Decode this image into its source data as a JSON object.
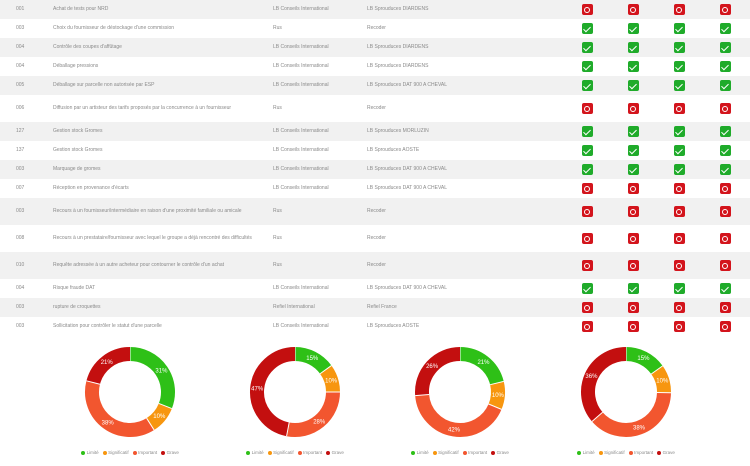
{
  "table": {
    "rows": [
      {
        "id": "001",
        "description": "Achat de tests pour NRD",
        "organization": "LB Conseils International",
        "site": "LB Sprouduces DIARDENS",
        "statuses": [
          "ko",
          "ko",
          "ko",
          "ko"
        ]
      },
      {
        "id": "003",
        "description": "Choix du fournisseur de déstockage d'une commission",
        "organization": "Rus",
        "site": "Recoder",
        "statuses": [
          "ok",
          "ok",
          "ok",
          "ok"
        ]
      },
      {
        "id": "004",
        "description": "Contrôle des coupes d'affûtage",
        "organization": "LB Conseils International",
        "site": "LB Sprouduces DIARDENS",
        "statuses": [
          "ok",
          "ok",
          "ok",
          "ok"
        ]
      },
      {
        "id": "004",
        "description": "Déballage pressions",
        "organization": "LB Conseils International",
        "site": "LB Sprouduces DIARDENS",
        "statuses": [
          "ok",
          "ok",
          "ok",
          "ok"
        ]
      },
      {
        "id": "005",
        "description": "Déballage sur parcelle non autorisée par ESP",
        "organization": "LB Conseils International",
        "site": "LB Sprouduces DAT 900 A CHEVAL",
        "statuses": [
          "ok",
          "ok",
          "ok",
          "ok"
        ]
      },
      {
        "id": "006",
        "description": "Diffusion par un artisteur des tarifs proposés par la concurrence à un fournisseur",
        "organization": "Rus",
        "site": "Recoder",
        "statuses": [
          "ko",
          "ko",
          "ko",
          "ko"
        ],
        "tall": true
      },
      {
        "id": "127",
        "description": "Gestion stock Gromes",
        "organization": "LB Conseils International",
        "site": "LB Sprouduces MORLUZIN",
        "statuses": [
          "ok",
          "ok",
          "ok",
          "ok"
        ]
      },
      {
        "id": "137",
        "description": "Gestion stock Gromes",
        "organization": "LB Conseils International",
        "site": "LB Sprouduces AOSTE",
        "statuses": [
          "ok",
          "ok",
          "ok",
          "ok"
        ]
      },
      {
        "id": "003",
        "description": "Marquage de gromes",
        "organization": "LB Conseils International",
        "site": "LB Sprouduces DAT 900 A CHEVAL",
        "statuses": [
          "ok",
          "ok",
          "ok",
          "ok"
        ]
      },
      {
        "id": "007",
        "description": "Réception en provenance d'écarts",
        "organization": "LB Conseils International",
        "site": "LB Sprouduces DAT 900 A CHEVAL",
        "statuses": [
          "ko",
          "ko",
          "ko",
          "ko"
        ]
      },
      {
        "id": "003",
        "description": "Recours à un fournisseur/intermédiaire en raison d'une proximité familiale ou amicale",
        "organization": "Rus",
        "site": "Recoder",
        "statuses": [
          "ko",
          "ko",
          "ko",
          "ko"
        ],
        "tall": true
      },
      {
        "id": "008",
        "description": "Recours à un prestataire/fournisseur avec lequel le groupe a déjà rencontré des difficultés",
        "organization": "Rus",
        "site": "Recoder",
        "statuses": [
          "ko",
          "ko",
          "ko",
          "ko"
        ],
        "tall": true
      },
      {
        "id": "010",
        "description": "Requête adressée à un autre acheteur pour contourner le contrôle d'un achat",
        "organization": "Rus",
        "site": "Recoder",
        "statuses": [
          "ko",
          "ko",
          "ko",
          "ko"
        ],
        "tall": true
      },
      {
        "id": "004",
        "description": "Risque fraude DAT",
        "organization": "LB Conseils International",
        "site": "LB Sprouduces DAT 900 A CHEVAL",
        "statuses": [
          "ok",
          "ok",
          "ok",
          "ok"
        ]
      },
      {
        "id": "003",
        "description": "rupture de croquettes",
        "organization": "Refiel International",
        "site": "Refiel France",
        "statuses": [
          "ko",
          "ko",
          "ko",
          "ko"
        ]
      },
      {
        "id": "003",
        "description": "Sollicitation pour contrôler le statut d'une parcelle",
        "organization": "LB Conseils International",
        "site": "LB Sprouduces AOSTE",
        "statuses": [
          "ko",
          "ko",
          "ko",
          "ko"
        ]
      }
    ]
  },
  "status_colors": {
    "ok": "#1fab2a",
    "ko": "#d3141c"
  },
  "status_icons": {
    "ok": "check-icon",
    "ko": "refresh-icon"
  },
  "legend": {
    "labels": [
      "Limité",
      "Significatif",
      "Important",
      "Grave"
    ],
    "colors": [
      "#2ec017",
      "#f7960f",
      "#f2562f",
      "#c30f0f"
    ]
  },
  "charts": [
    {
      "values": [
        31,
        10,
        38,
        21
      ],
      "labels": [
        "31%",
        "10%",
        "38%",
        "21%"
      ]
    },
    {
      "values": [
        15,
        10,
        28,
        47
      ],
      "labels": [
        "15%",
        "10%",
        "28%",
        "47%"
      ]
    },
    {
      "values": [
        21,
        10,
        42,
        26
      ],
      "labels": [
        "21%",
        "10%",
        "42%",
        "26%"
      ]
    },
    {
      "values": [
        15,
        10,
        38,
        36
      ],
      "labels": [
        "15%",
        "10%",
        "38%",
        "36%"
      ]
    }
  ]
}
